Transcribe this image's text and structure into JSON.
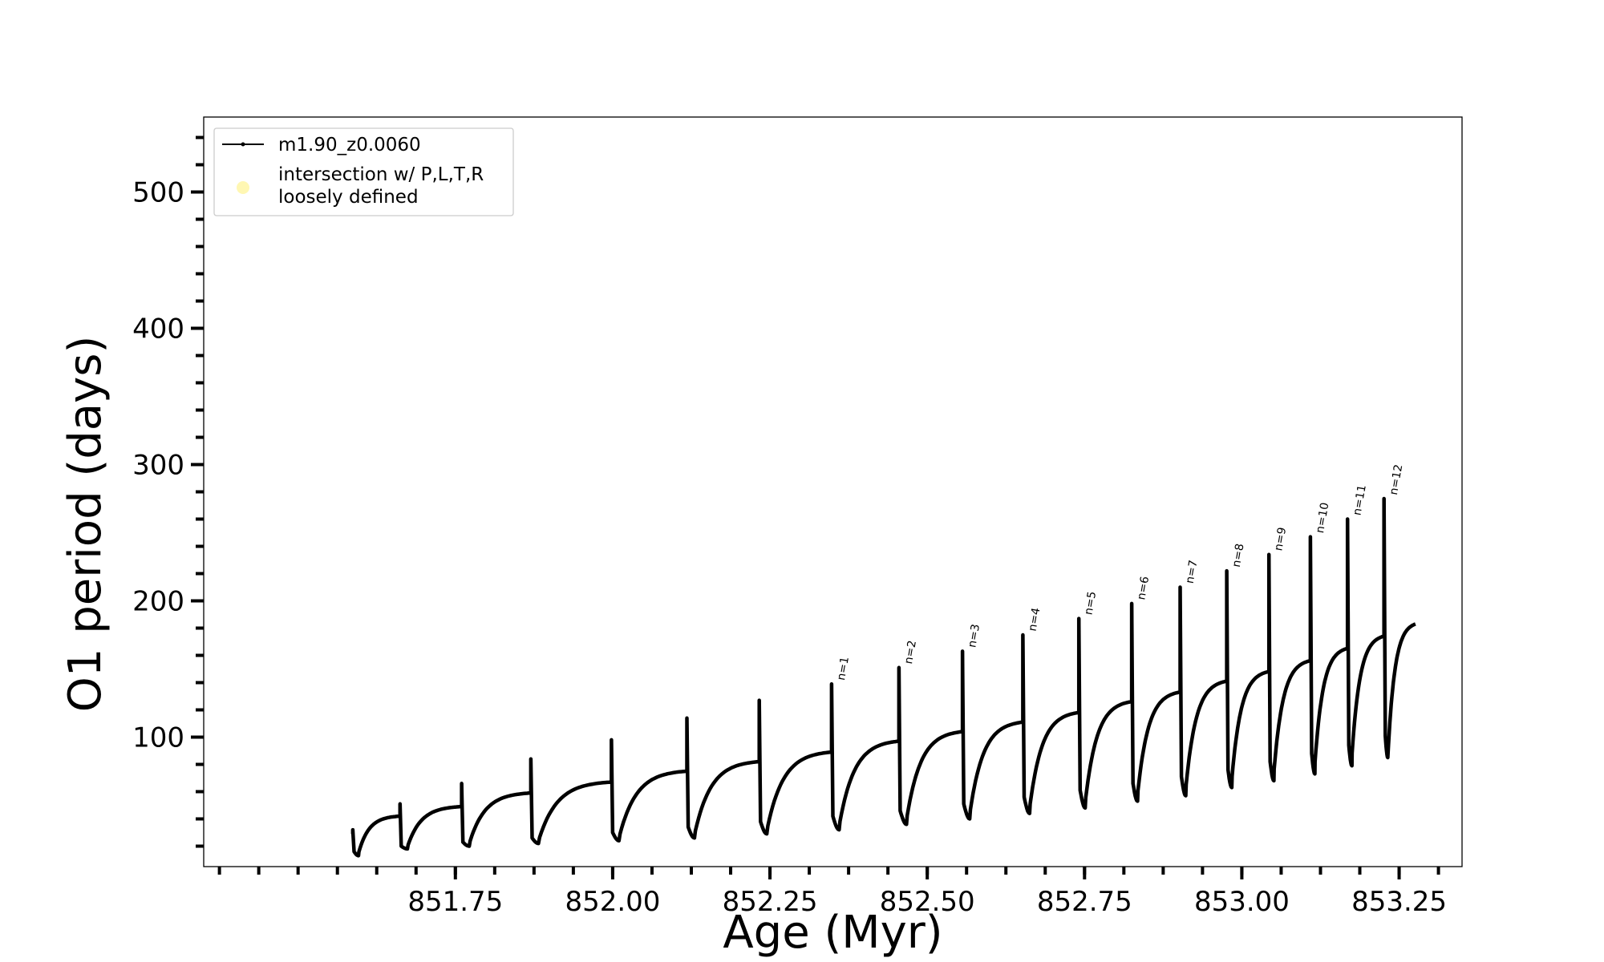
{
  "chart_data": {
    "type": "line",
    "xlabel": "Age (Myr)",
    "ylabel": "O1 period (days)",
    "xlim": [
      851.35,
      853.35
    ],
    "ylim": [
      5,
      555
    ],
    "x_ticks": [
      851.75,
      852.0,
      852.25,
      852.5,
      852.75,
      853.0,
      853.25
    ],
    "x_tick_labels": [
      "851.75",
      "852.00",
      "852.25",
      "852.50",
      "852.75",
      "853.00",
      "853.25"
    ],
    "y_ticks": [
      100,
      200,
      300,
      400,
      500
    ],
    "y_tick_labels": [
      "100",
      "200",
      "300",
      "400",
      "500"
    ],
    "grid": false,
    "legend": {
      "position": "top-left",
      "entries": [
        {
          "label": "m1.90_z0.0060",
          "marker": "line-with-dots",
          "color": "#000000"
        },
        {
          "label_lines": [
            "intersection w/ P,L,T,R",
            "loosely defined"
          ],
          "marker": "circle",
          "color": "#fff7b3"
        }
      ]
    },
    "series": [
      {
        "name": "m1.90_z0.0060",
        "color": "#000000",
        "pulses": [
          {
            "x": 851.587,
            "peak": 32,
            "pre": 29,
            "drop": 16,
            "min": 13,
            "end": 42,
            "label": ""
          },
          {
            "x": 851.662,
            "peak": 51,
            "pre": 42,
            "drop": 20,
            "min": 18,
            "end": 49,
            "label": ""
          },
          {
            "x": 851.76,
            "peak": 66,
            "pre": 49,
            "drop": 23,
            "min": 20,
            "end": 59,
            "label": ""
          },
          {
            "x": 851.87,
            "peak": 84,
            "pre": 59,
            "drop": 26,
            "min": 22,
            "end": 67,
            "label": ""
          },
          {
            "x": 851.998,
            "peak": 98,
            "pre": 67,
            "drop": 30,
            "min": 24,
            "end": 75,
            "label": ""
          },
          {
            "x": 852.118,
            "peak": 114,
            "pre": 75,
            "drop": 34,
            "min": 26,
            "end": 82,
            "label": ""
          },
          {
            "x": 852.233,
            "peak": 127,
            "pre": 82,
            "drop": 38,
            "min": 29,
            "end": 89,
            "label": ""
          },
          {
            "x": 852.348,
            "peak": 139,
            "pre": 89,
            "drop": 42,
            "min": 32,
            "end": 97,
            "label": "n=1"
          },
          {
            "x": 852.455,
            "peak": 151,
            "pre": 97,
            "drop": 46,
            "min": 36,
            "end": 104,
            "label": "n=2"
          },
          {
            "x": 852.556,
            "peak": 163,
            "pre": 104,
            "drop": 51,
            "min": 40,
            "end": 111,
            "label": "n=3"
          },
          {
            "x": 852.652,
            "peak": 175,
            "pre": 111,
            "drop": 56,
            "min": 44,
            "end": 118,
            "label": "n=4"
          },
          {
            "x": 852.741,
            "peak": 187,
            "pre": 118,
            "drop": 61,
            "min": 48,
            "end": 126,
            "label": "n=5"
          },
          {
            "x": 852.825,
            "peak": 198,
            "pre": 126,
            "drop": 66,
            "min": 53,
            "end": 133,
            "label": "n=6"
          },
          {
            "x": 852.902,
            "peak": 210,
            "pre": 133,
            "drop": 71,
            "min": 57,
            "end": 141,
            "label": "n=7"
          },
          {
            "x": 852.976,
            "peak": 222,
            "pre": 141,
            "drop": 76,
            "min": 63,
            "end": 148,
            "label": "n=8"
          },
          {
            "x": 853.043,
            "peak": 234,
            "pre": 148,
            "drop": 82,
            "min": 68,
            "end": 156,
            "label": "n=9"
          },
          {
            "x": 853.109,
            "peak": 247,
            "pre": 156,
            "drop": 88,
            "min": 73,
            "end": 165,
            "label": "n=10"
          },
          {
            "x": 853.168,
            "peak": 260,
            "pre": 165,
            "drop": 94,
            "min": 79,
            "end": 174,
            "label": "n=11"
          },
          {
            "x": 853.226,
            "peak": 275,
            "pre": 174,
            "drop": 101,
            "min": 85,
            "end": 183,
            "label": "n=12"
          }
        ],
        "final_x": 853.276
      }
    ]
  }
}
